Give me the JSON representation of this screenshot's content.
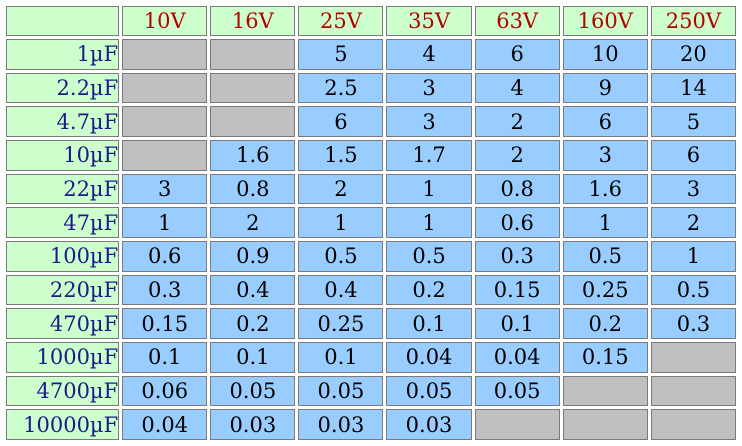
{
  "table": {
    "columns": [
      "10V",
      "16V",
      "25V",
      "35V",
      "63V",
      "160V",
      "250V"
    ],
    "rows": [
      {
        "label": "1µF",
        "values": [
          null,
          null,
          "5",
          "4",
          "6",
          "10",
          "20"
        ]
      },
      {
        "label": "2.2µF",
        "values": [
          null,
          null,
          "2.5",
          "3",
          "4",
          "9",
          "14"
        ]
      },
      {
        "label": "4.7µF",
        "values": [
          null,
          null,
          "6",
          "3",
          "2",
          "6",
          "5"
        ]
      },
      {
        "label": "10µF",
        "values": [
          null,
          "1.6",
          "1.5",
          "1.7",
          "2",
          "3",
          "6"
        ]
      },
      {
        "label": "22µF",
        "values": [
          "3",
          "0.8",
          "2",
          "1",
          "0.8",
          "1.6",
          "3"
        ]
      },
      {
        "label": "47µF",
        "values": [
          "1",
          "2",
          "1",
          "1",
          "0.6",
          "1",
          "2"
        ]
      },
      {
        "label": "100µF",
        "values": [
          "0.6",
          "0.9",
          "0.5",
          "0.5",
          "0.3",
          "0.5",
          "1"
        ]
      },
      {
        "label": "220µF",
        "values": [
          "0.3",
          "0.4",
          "0.4",
          "0.2",
          "0.15",
          "0.25",
          "0.5"
        ]
      },
      {
        "label": "470µF",
        "values": [
          "0.15",
          "0.2",
          "0.25",
          "0.1",
          "0.1",
          "0.2",
          "0.3"
        ]
      },
      {
        "label": "1000µF",
        "values": [
          "0.1",
          "0.1",
          "0.1",
          "0.04",
          "0.04",
          "0.15",
          null
        ]
      },
      {
        "label": "4700µF",
        "values": [
          "0.06",
          "0.05",
          "0.05",
          "0.05",
          "0.05",
          null,
          null
        ]
      },
      {
        "label": "10000µF",
        "values": [
          "0.04",
          "0.03",
          "0.03",
          "0.03",
          null,
          null,
          null
        ]
      }
    ]
  },
  "colors": {
    "header_bg": "#ccffcc",
    "header_text": "#b50000",
    "row_label_text": "#1a1a8a",
    "value_bg": "#99ccff",
    "empty_bg": "#c0c0c0"
  }
}
